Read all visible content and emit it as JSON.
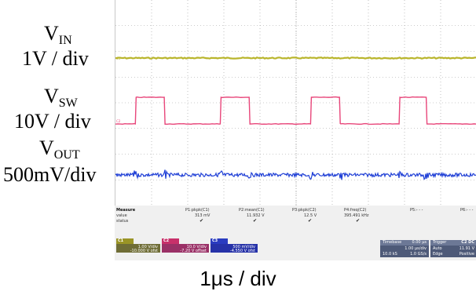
{
  "labels": {
    "vin": {
      "main": "V",
      "sub": "IN",
      "scale": "1V / div"
    },
    "vsw": {
      "main": "V",
      "sub": "SW",
      "scale": "10V / div"
    },
    "vout": {
      "main": "V",
      "sub": "OUT",
      "scale": "500mV/div"
    }
  },
  "colors": {
    "vin": "#b9b52c",
    "vsw": "#e8467a",
    "vout": "#1f3fd6",
    "grid": "#9a9a9a",
    "panel": "#f0f0f0"
  },
  "screen_markers": {
    "c1": "C1",
    "c2": "C2",
    "c3": "C3"
  },
  "measure": {
    "header": "Measure",
    "rows": [
      "value",
      "status"
    ],
    "params": [
      {
        "name": "P1:pkpk(C1)",
        "value": "313 mV",
        "status": "✔"
      },
      {
        "name": "P2:mean(C1)",
        "value": "11.932 V",
        "status": "✔"
      },
      {
        "name": "P3:pkpk(C2)",
        "value": "12.5 V",
        "status": "✔"
      },
      {
        "name": "P4:freq(C2)",
        "value": "395.491 kHz",
        "status": "✔"
      },
      {
        "name": "P5:- - -",
        "value": "",
        "status": ""
      },
      {
        "name": "P6:- - -",
        "value": "",
        "status": ""
      }
    ]
  },
  "channels": [
    {
      "tag": "C1",
      "tag2": "",
      "line1": "1.00 V/div",
      "line2": "-10.000 V ofst"
    },
    {
      "tag": "C2",
      "tag2": "",
      "line1": "10.0 V/div",
      "line2": "-7.20 V offset"
    },
    {
      "tag": "C3",
      "tag2": "",
      "line1": "500 mV/div",
      "line2": "-4.550 V ofst"
    }
  ],
  "timebase": {
    "title": "Timebase",
    "offset": "0.00 µs",
    "tdiv": "1.00 µs/div",
    "samples": "10.0 kS",
    "rate": "1.0 GS/s"
  },
  "trigger": {
    "title": "Trigger",
    "mode": "Auto",
    "level": "11.91 V",
    "type": "Edge",
    "slope": "Positive",
    "src": "C2 DC"
  },
  "time_scale": "1μs / div",
  "chart_data": {
    "type": "line",
    "x_unit": "µs",
    "xlim": [
      0,
      10
    ],
    "series": [
      {
        "name": "V_IN",
        "note": "flat DC, ~313 mV pk-pk ripple",
        "values": [
          11.93,
          11.93
        ]
      },
      {
        "name": "V_SW",
        "note": "square wave 0 to ~12.5 V, ~395 kHz",
        "rising_edges_us": [
          0.55,
          2.9,
          5.4,
          7.85
        ],
        "falling_edges_us": [
          1.35,
          3.7,
          6.2,
          8.6
        ],
        "high": 12.5,
        "low": 0
      },
      {
        "name": "V_OUT",
        "note": "flat DC with switching noise"
      }
    ]
  }
}
